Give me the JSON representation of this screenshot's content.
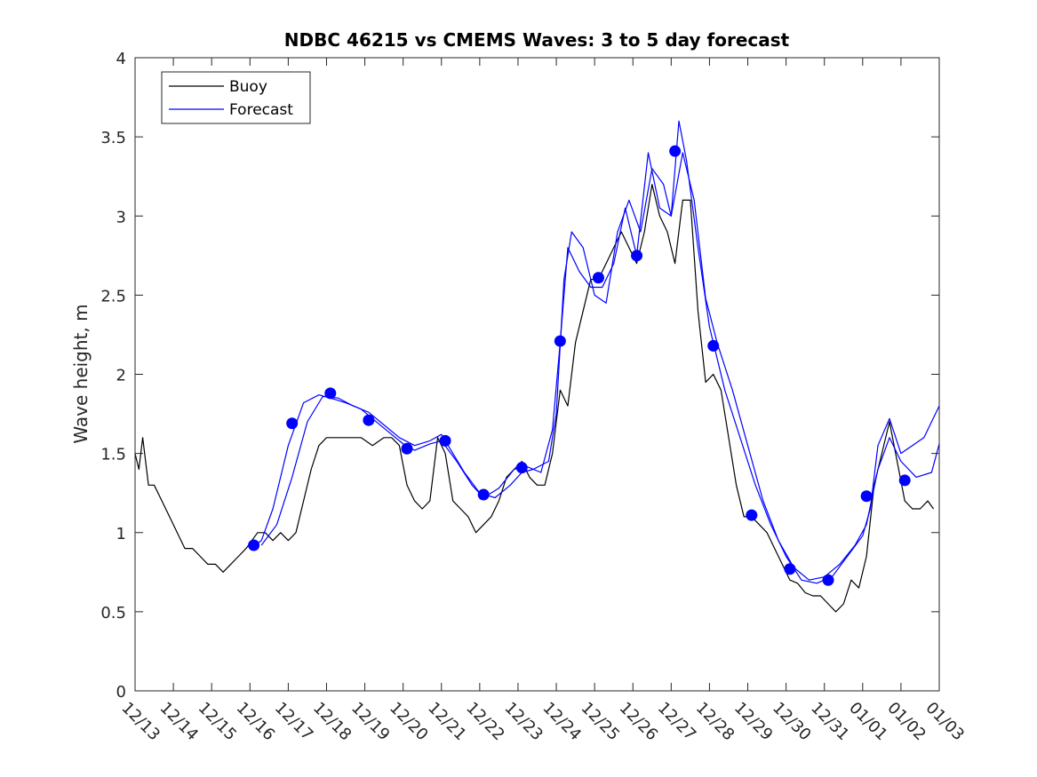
{
  "chart_data": {
    "type": "line",
    "title": "NDBC 46215 vs CMEMS Waves: 3 to 5 day forecast",
    "xlabel": "",
    "ylabel": "Wave height, m",
    "xlim": [
      0,
      21
    ],
    "ylim": [
      0,
      4
    ],
    "x_ticks": [
      0,
      1,
      2,
      3,
      4,
      5,
      6,
      7,
      8,
      9,
      10,
      11,
      12,
      13,
      14,
      15,
      16,
      17,
      18,
      19,
      20,
      21
    ],
    "x_tick_labels": [
      "12/13",
      "12/14",
      "12/15",
      "12/16",
      "12/17",
      "12/18",
      "12/19",
      "12/20",
      "12/21",
      "12/22",
      "12/23",
      "12/24",
      "12/25",
      "12/26",
      "12/27",
      "12/28",
      "12/29",
      "12/30",
      "12/31",
      "01/01",
      "01/02",
      "01/03"
    ],
    "y_ticks": [
      0,
      0.5,
      1,
      1.5,
      2,
      2.5,
      3,
      3.5,
      4
    ],
    "y_tick_labels": [
      "0",
      "0.5",
      "1",
      "1.5",
      "2",
      "2.5",
      "3",
      "3.5",
      "4"
    ],
    "legend": {
      "position": "top-left",
      "entries": [
        {
          "label": "Buoy",
          "color": "#000000"
        },
        {
          "label": "Forecast",
          "color": "#0000ff"
        }
      ]
    },
    "colors": {
      "buoy": "#000000",
      "forecast": "#0000ff",
      "markers": "#0000ff",
      "axes": "#262626"
    },
    "series": [
      {
        "name": "Buoy",
        "x": [
          0,
          0.1,
          0.2,
          0.35,
          0.5,
          0.7,
          0.9,
          1.1,
          1.3,
          1.5,
          1.7,
          1.9,
          2.1,
          2.3,
          2.5,
          2.7,
          2.9,
          3.05,
          3.2,
          3.4,
          3.6,
          3.8,
          4.0,
          4.2,
          4.4,
          4.6,
          4.8,
          5.0,
          5.3,
          5.6,
          5.9,
          6.2,
          6.5,
          6.7,
          6.9,
          7.1,
          7.3,
          7.5,
          7.7,
          7.9,
          8.1,
          8.3,
          8.5,
          8.7,
          8.9,
          9.1,
          9.3,
          9.5,
          9.7,
          9.9,
          10.1,
          10.3,
          10.5,
          10.7,
          10.9,
          11.1,
          11.3,
          11.5,
          11.7,
          11.9,
          12.1,
          12.3,
          12.5,
          12.7,
          12.9,
          13.1,
          13.3,
          13.5,
          13.7,
          13.9,
          14.1,
          14.3,
          14.5,
          14.7,
          14.9,
          15.1,
          15.3,
          15.5,
          15.7,
          15.9,
          16.1,
          16.3,
          16.5,
          16.7,
          16.9,
          17.1,
          17.3,
          17.5,
          17.7,
          17.9,
          18.1,
          18.3,
          18.5,
          18.7,
          18.9,
          19.1,
          19.3,
          19.5,
          19.7,
          19.9,
          20.1,
          20.3,
          20.5,
          20.7,
          20.85
        ],
        "values": [
          1.5,
          1.4,
          1.6,
          1.3,
          1.3,
          1.2,
          1.1,
          1.0,
          0.9,
          0.9,
          0.85,
          0.8,
          0.8,
          0.75,
          0.8,
          0.85,
          0.9,
          0.95,
          1.0,
          1.0,
          0.95,
          1.0,
          0.95,
          1.0,
          1.2,
          1.4,
          1.55,
          1.6,
          1.6,
          1.6,
          1.6,
          1.55,
          1.6,
          1.6,
          1.55,
          1.3,
          1.2,
          1.15,
          1.2,
          1.6,
          1.5,
          1.2,
          1.15,
          1.1,
          1.0,
          1.05,
          1.1,
          1.2,
          1.35,
          1.4,
          1.45,
          1.35,
          1.3,
          1.3,
          1.5,
          1.9,
          1.8,
          2.2,
          2.4,
          2.6,
          2.6,
          2.7,
          2.8,
          2.9,
          2.8,
          2.7,
          2.9,
          3.2,
          3.0,
          2.9,
          2.7,
          3.1,
          3.1,
          2.4,
          1.95,
          2.0,
          1.9,
          1.6,
          1.3,
          1.1,
          1.1,
          1.05,
          1.0,
          0.9,
          0.8,
          0.7,
          0.68,
          0.62,
          0.6,
          0.6,
          0.55,
          0.5,
          0.55,
          0.7,
          0.65,
          0.85,
          1.3,
          1.5,
          1.7,
          1.45,
          1.2,
          1.15,
          1.15,
          1.2,
          1.15
        ]
      },
      {
        "name": "Forecast",
        "x": [
          3.0,
          3.3,
          3.6,
          4.0,
          4.4,
          4.8,
          5.1,
          5.5,
          5.9,
          6.2,
          6.6,
          7.0,
          7.3,
          7.7,
          8.0,
          8.4,
          8.8,
          9.1,
          9.5,
          9.9,
          10.2,
          10.6,
          10.9,
          11.1,
          11.3,
          11.6,
          11.9,
          12.2,
          12.5,
          12.8,
          13.1,
          13.4,
          13.7,
          14.0,
          14.2,
          14.4,
          14.7,
          15.0,
          15.4,
          15.8,
          16.2,
          16.6,
          17.0,
          17.4,
          17.8,
          18.2,
          18.6,
          19.0,
          19.2,
          19.4,
          19.7,
          20.0,
          20.3,
          20.6,
          21.0
        ],
        "values": [
          0.9,
          0.95,
          1.15,
          1.55,
          1.82,
          1.87,
          1.85,
          1.82,
          1.78,
          1.72,
          1.64,
          1.56,
          1.52,
          1.56,
          1.58,
          1.45,
          1.3,
          1.22,
          1.28,
          1.4,
          1.42,
          1.38,
          1.65,
          2.2,
          2.8,
          2.65,
          2.55,
          2.55,
          2.7,
          3.05,
          2.75,
          3.4,
          3.05,
          3.0,
          3.6,
          3.35,
          2.8,
          2.3,
          1.9,
          1.6,
          1.3,
          1.05,
          0.85,
          0.7,
          0.68,
          0.72,
          0.85,
          0.98,
          1.15,
          1.55,
          1.72,
          1.5,
          1.55,
          1.6,
          1.8
        ]
      },
      {
        "name": "Forecast",
        "x": [
          3.3,
          3.7,
          4.1,
          4.5,
          4.9,
          5.3,
          5.7,
          6.1,
          6.5,
          6.9,
          7.3,
          7.7,
          8.0,
          8.3,
          8.6,
          9.0,
          9.4,
          9.8,
          10.1,
          10.4,
          10.8,
          11.0,
          11.2,
          11.4,
          11.7,
          12.0,
          12.3,
          12.6,
          12.9,
          13.2,
          13.5,
          13.8,
          14.0,
          14.3,
          14.6,
          14.9,
          15.2,
          15.6,
          16.0,
          16.4,
          16.8,
          17.2,
          17.6,
          18.0,
          18.4,
          18.8,
          19.1,
          19.4,
          19.7,
          20.0,
          20.4,
          20.8,
          21.0
        ],
        "values": [
          0.92,
          1.05,
          1.35,
          1.7,
          1.86,
          1.85,
          1.8,
          1.76,
          1.68,
          1.6,
          1.55,
          1.58,
          1.62,
          1.5,
          1.38,
          1.25,
          1.22,
          1.3,
          1.38,
          1.4,
          1.45,
          1.75,
          2.6,
          2.9,
          2.8,
          2.5,
          2.45,
          2.9,
          3.1,
          2.9,
          3.3,
          3.2,
          3.0,
          3.4,
          3.1,
          2.48,
          2.2,
          1.9,
          1.55,
          1.2,
          0.95,
          0.78,
          0.7,
          0.72,
          0.8,
          0.92,
          1.05,
          1.4,
          1.6,
          1.45,
          1.35,
          1.38,
          1.56
        ]
      },
      {
        "name": "Forecast markers",
        "x": [
          3.1,
          4.1,
          5.1,
          6.1,
          7.1,
          8.1,
          9.1,
          10.1,
          11.1,
          12.1,
          13.1,
          14.1,
          15.1,
          16.1,
          17.1,
          18.1,
          19.1,
          20.1
        ],
        "values": [
          0.92,
          1.69,
          1.88,
          1.71,
          1.53,
          1.58,
          1.24,
          1.41,
          2.21,
          2.61,
          2.75,
          3.41,
          2.18,
          1.11,
          0.77,
          0.7,
          1.23,
          1.33
        ]
      }
    ]
  }
}
